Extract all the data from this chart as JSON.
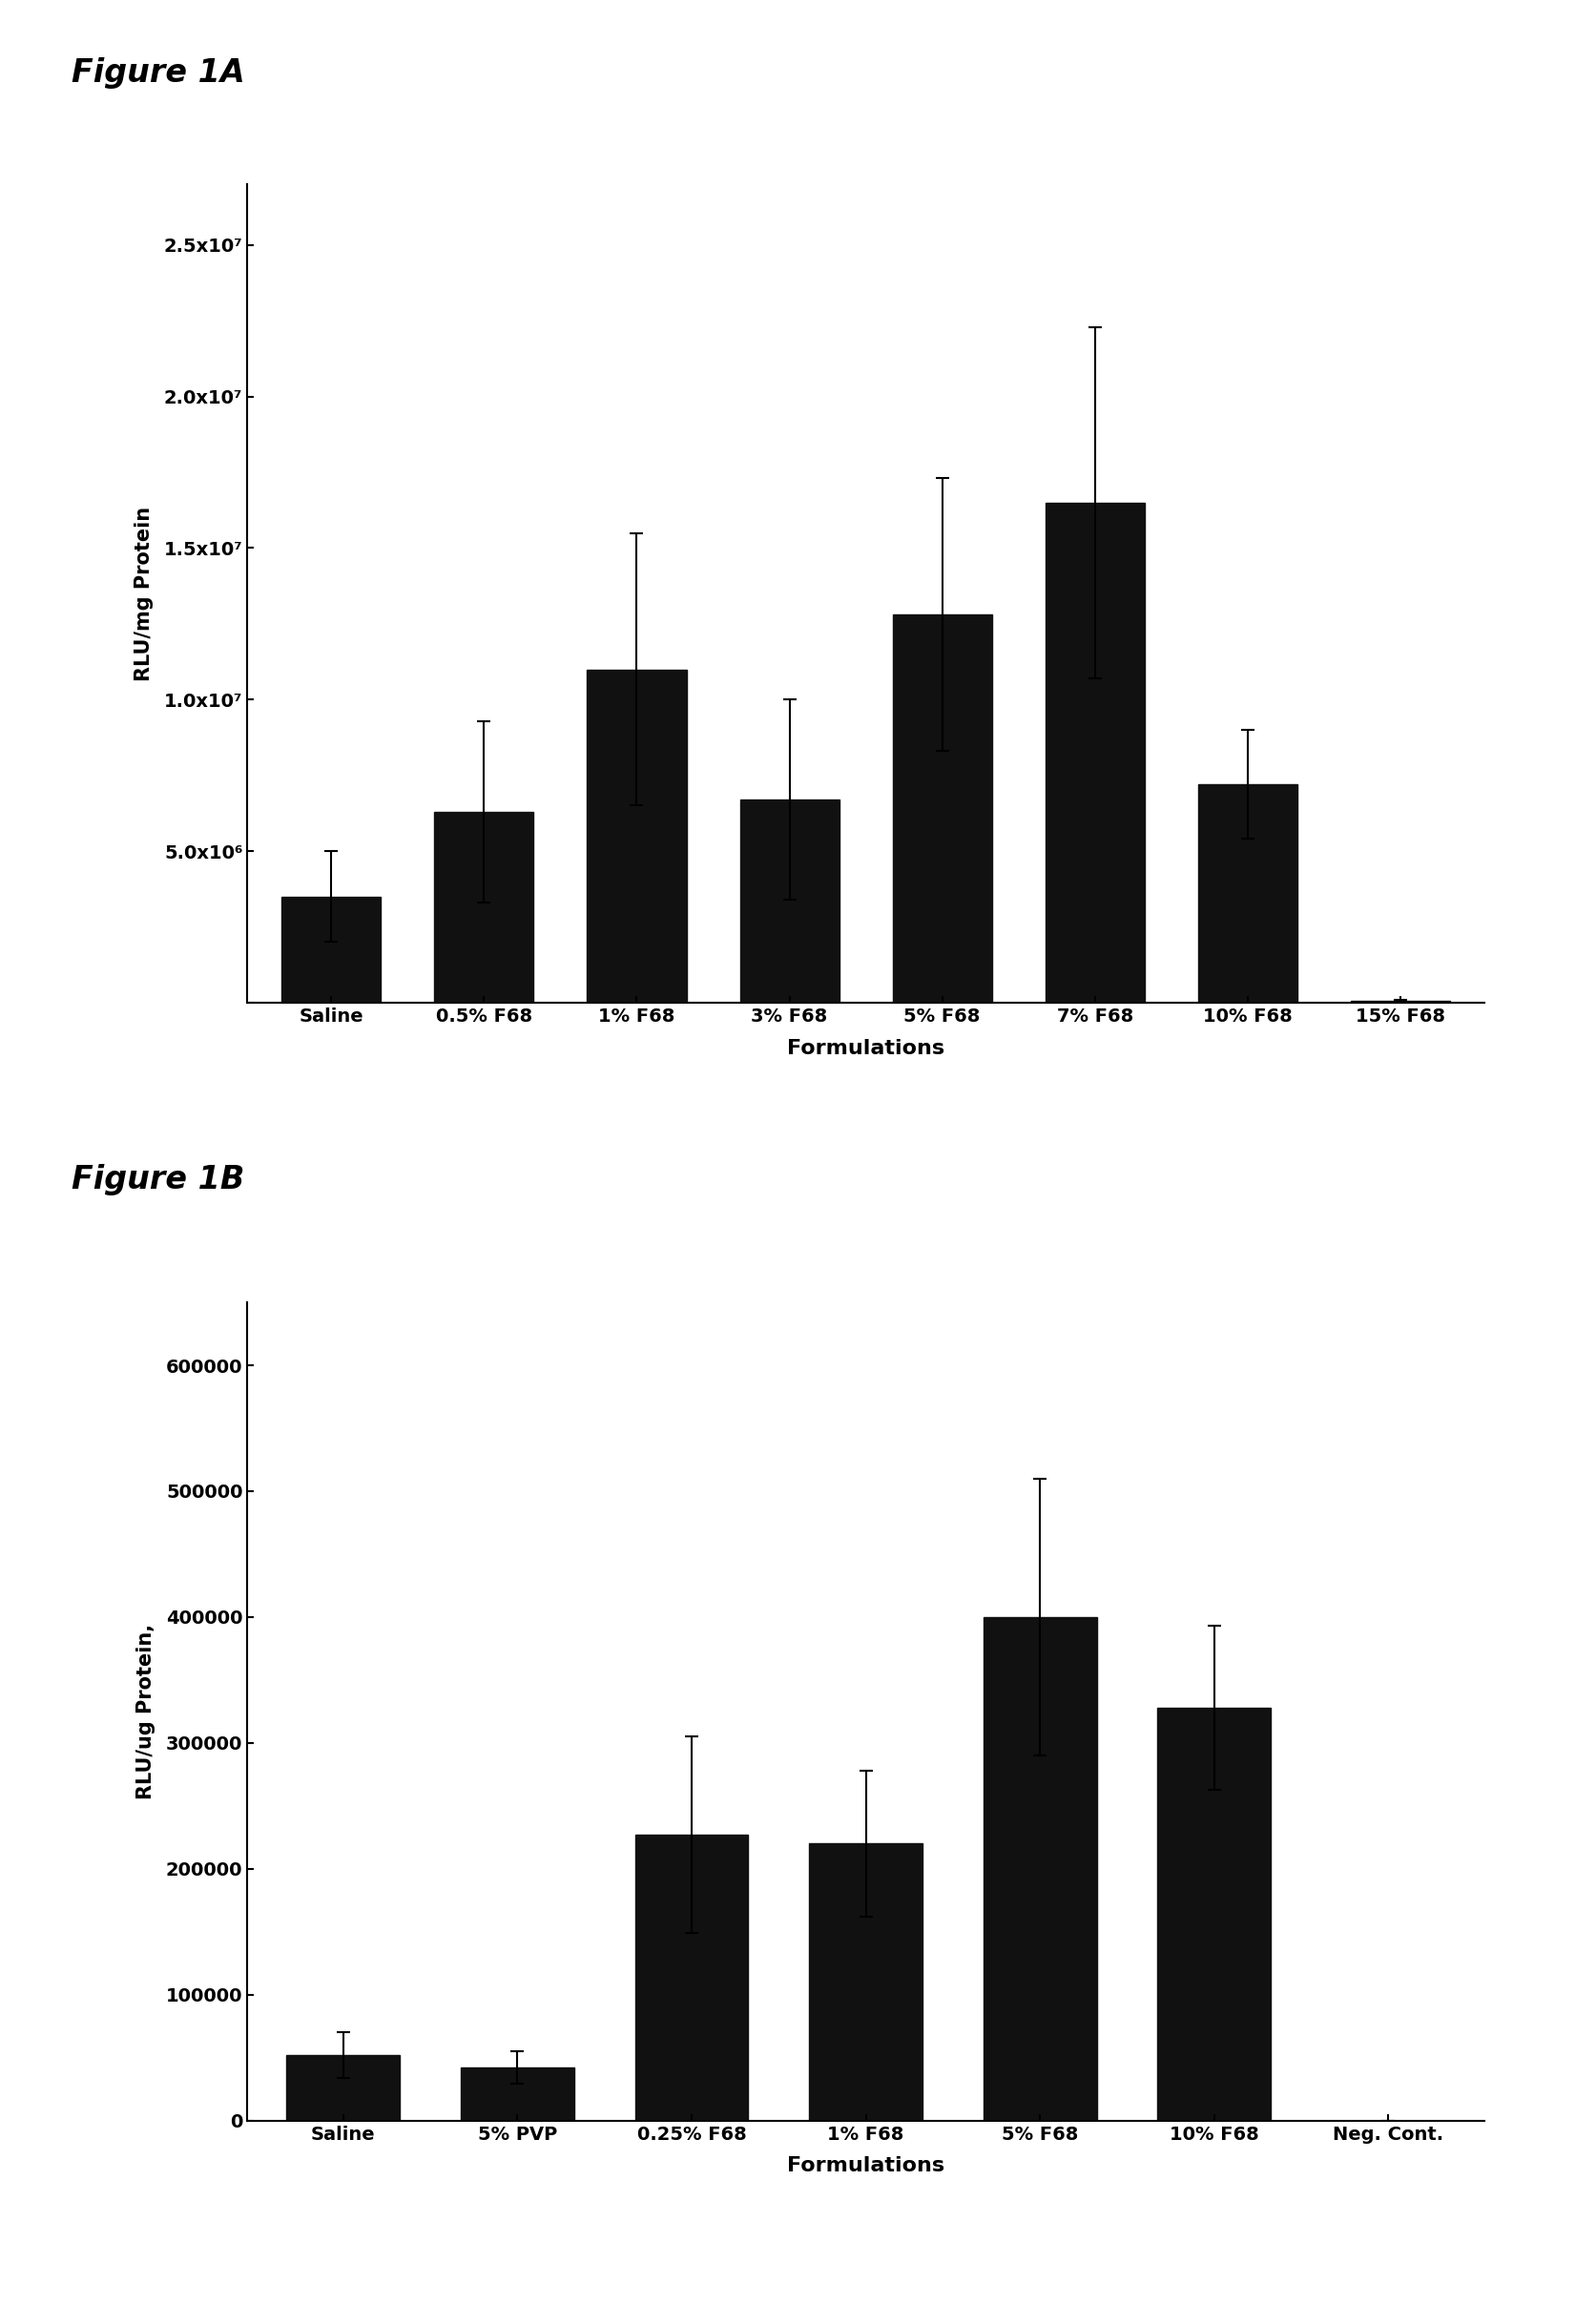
{
  "fig1A": {
    "title": "Figure 1A",
    "categories": [
      "Saline",
      "0.5% F68",
      "1% F68",
      "3% F68",
      "5% F68",
      "7% F68",
      "10% F68",
      "15% F68"
    ],
    "values": [
      3500000.0,
      6300000.0,
      11000000.0,
      6700000.0,
      12800000.0,
      16500000.0,
      7200000.0,
      50000.0
    ],
    "errors": [
      1500000.0,
      3000000.0,
      4500000.0,
      3300000.0,
      4500000.0,
      5800000.0,
      1800000.0,
      30000.0
    ],
    "ylabel": "RLU/mg Protein",
    "xlabel": "Formulations",
    "ylim": [
      0,
      27000000.0
    ],
    "yticks": [
      0,
      5000000.0,
      10000000.0,
      15000000.0,
      20000000.0,
      25000000.0
    ],
    "ytick_labels": [
      "",
      "5.0x10⁶",
      "1.0x10⁷",
      "1.5x10⁷",
      "2.0x10⁷",
      "2.5x10⁷"
    ],
    "bar_color": "#111111",
    "bar_width": 0.65
  },
  "fig1B": {
    "title": "Figure 1B",
    "categories": [
      "Saline",
      "5% PVP",
      "0.25% F68",
      "1% F68",
      "5% F68",
      "10% F68",
      "Neg. Cont."
    ],
    "values": [
      52000,
      42000,
      227000,
      220000,
      400000,
      328000,
      0
    ],
    "errors": [
      18000,
      13000,
      78000,
      58000,
      110000,
      65000,
      0
    ],
    "ylabel": "RLU/ug Protein,",
    "xlabel": "Formulations",
    "ylim": [
      0,
      650000
    ],
    "yticks": [
      0,
      100000,
      200000,
      300000,
      400000,
      500000,
      600000
    ],
    "ytick_labels": [
      "0",
      "100000",
      "200000",
      "300000",
      "400000",
      "500000",
      "600000"
    ],
    "bar_color": "#111111",
    "bar_width": 0.65
  },
  "fig_width": 16.73,
  "fig_height": 24.16,
  "background_color": "#ffffff",
  "label_fontsize": 24,
  "tick_fontsize": 14,
  "axis_label_fontsize": 15,
  "xlabel_fontsize": 16
}
